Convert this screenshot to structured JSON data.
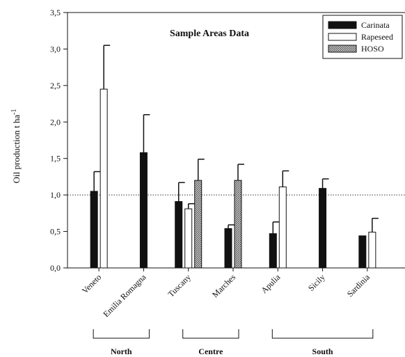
{
  "chart_data": {
    "type": "bar",
    "title": "Sample Areas Data",
    "ylabel": "Oil production t ha",
    "ylabel_superscript": "-1",
    "xlabel": "",
    "ylim": [
      0,
      3.5
    ],
    "yticks": [
      "0,0",
      "0,5",
      "1,0",
      "1,5",
      "2,0",
      "2,5",
      "3,0",
      "3,5"
    ],
    "yticks_values": [
      0,
      0.5,
      1.0,
      1.5,
      2.0,
      2.5,
      3.0,
      3.5
    ],
    "reference_line": 1.0,
    "legend_position": "top-right",
    "categories": [
      "Veneto",
      "Emilia Romagna",
      "Tuscany",
      "Marches",
      "Apulia",
      "Sicily",
      "Sardinia"
    ],
    "series": [
      {
        "name": "Carinata",
        "color": "#111111",
        "pattern": "solid",
        "values": [
          1.05,
          1.58,
          0.91,
          0.54,
          0.47,
          1.09,
          0.44
        ],
        "errors": [
          0.27,
          0.52,
          0.26,
          0.05,
          0.16,
          0.13,
          0.0
        ]
      },
      {
        "name": "Rapeseed",
        "color": "#ffffff",
        "pattern": "white",
        "values": [
          2.45,
          null,
          0.81,
          null,
          1.11,
          null,
          0.49
        ],
        "errors": [
          0.6,
          null,
          0.07,
          null,
          0.22,
          null,
          0.19
        ]
      },
      {
        "name": "HOSO",
        "color": "#9a9a9a",
        "pattern": "stipple",
        "values": [
          null,
          null,
          1.2,
          1.2,
          null,
          null,
          null
        ],
        "errors": [
          null,
          null,
          0.29,
          0.22,
          null,
          null,
          null
        ]
      }
    ],
    "regions": [
      {
        "name": "North",
        "categories": [
          "Veneto",
          "Emilia Romagna"
        ]
      },
      {
        "name": "Centre",
        "categories": [
          "Tuscany",
          "Marches"
        ]
      },
      {
        "name": "South",
        "categories": [
          "Apulia",
          "Sicily",
          "Sardinia"
        ]
      }
    ]
  }
}
